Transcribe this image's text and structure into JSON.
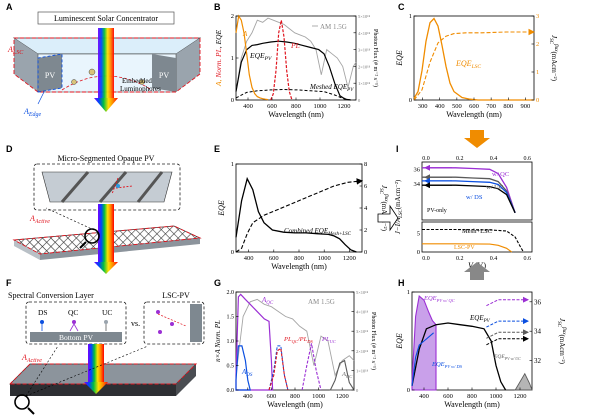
{
  "panels": {
    "A": {
      "letter": "A",
      "title": "Luminescent Solar Concentrator",
      "pv_left": "PV",
      "pv_right": "PV",
      "a_lsc": "A",
      "a_lsc_sub": "LSC",
      "a_edge": "A",
      "a_edge_sub": "Edge",
      "lum_line1": "Embedded",
      "lum_line2": "Luminophores"
    },
    "B": {
      "letter": "B",
      "yleft": "Norm. PL, EQE",
      "yright": "Photon Flux (# m⁻² s⁻¹)",
      "xlabel": "Wavelength (nm)",
      "am": "AM 1.5G",
      "eqe_pv": "EQE",
      "eqe_pv_sub": "PV",
      "pl": "PL",
      "meshed": "Meshed EQE",
      "meshed_sub": "PV",
      "a_marker": "A"
    },
    "C": {
      "letter": "C",
      "ylabel": "EQE",
      "xlabel": "Wavelength (nm)",
      "curve": "EQE",
      "curve_sub": "LSC",
      "yright": "J",
      "yright_sub": "SC",
      "yright_sup": "flux",
      "yright_unit": "(mAcm⁻²)"
    },
    "D": {
      "letter": "D",
      "title": "Micro-Segmented Opaque PV",
      "a_active": "A",
      "a_active_sub": "Active"
    },
    "E": {
      "letter": "E",
      "ylabel": "EQE",
      "xlabel": "Wavelength (nm)",
      "combined": "Combined EQE",
      "combined_sub": "Mesh+LSC",
      "yright": "J",
      "yright_sub": "SC",
      "yright_sup": "flux",
      "yright_unit": "(mAcm⁻²)"
    },
    "F": {
      "letter": "F",
      "title": "Spectral Conversion Layer",
      "lsc_pv": "LSC-PV",
      "ds": "DS",
      "qc": "QC",
      "uc": "UC",
      "vs": "vs.",
      "bottom_pv": "Bottom PV",
      "a_active": "A",
      "a_active_sub": "Active"
    },
    "G": {
      "letter": "G",
      "ylabel": "n×A Norm. PL",
      "yright": "Photon Flux (# m⁻² s⁻¹)",
      "xlabel": "Wavelength (nm)",
      "am": "AM 1.5G",
      "a_qc": "A",
      "a_qc_sub": "QC",
      "a_ds": "A",
      "a_ds_sub": "DS",
      "pl_qc": "PL",
      "pl_qc_sub": "QC",
      "pl_ds": "PL",
      "pl_ds_sub": "DS",
      "pl_uc": "PL",
      "pl_uc_sub": "UC",
      "a_uc": "A",
      "a_uc_sub": "UC"
    },
    "H": {
      "letter": "H",
      "ylabel": "EQE",
      "xlabel": "Wavelength (nm)",
      "eqe_qc": "EQE",
      "eqe_qc_sub": "PV w/ QC",
      "eqe_pv": "EQE",
      "eqe_pv_sub": "PV",
      "eqe_ds": "EQE",
      "eqe_ds_sub": "PV w/ DS",
      "eqe_uc": "EQE",
      "eqe_uc_sub": "PV w/ UC",
      "yright": "J",
      "yright_sub": "SC",
      "yright_sup": "flux",
      "yright_unit": "(mAcm⁻²)"
    },
    "I": {
      "letter": "I",
      "ylabel": "J−I/A",
      "ylabel_sub": "LSC",
      "ylabel_unit": "(mAcm⁻²)",
      "xlabel": "V",
      "xlabel_unit": "(V)",
      "wqc": "w/ QC",
      "wuc": "w/ UC",
      "wds": "w/ DS",
      "pvonly": "PV-only",
      "meshlsc": "Mesh+LSC",
      "lscpv": "LSC-PV"
    }
  },
  "ticks": {
    "b_x": [
      "400",
      "600",
      "800",
      "1000",
      "1200"
    ],
    "b_yl": [
      "0",
      "1",
      "2"
    ],
    "b_yr": [
      "0",
      "1×10¹⁸",
      "2×10¹⁸",
      "3×10¹⁸",
      "4×10¹⁸",
      "5×10¹⁸"
    ],
    "c_x": [
      "300",
      "400",
      "500",
      "600",
      "700",
      "800",
      "900"
    ],
    "c_yl": [
      "0",
      "1"
    ],
    "c_yr": [
      "0",
      "1",
      "2",
      "3"
    ],
    "e_x": [
      "400",
      "600",
      "800",
      "1000",
      "1200"
    ],
    "e_yl": [
      "0",
      "1"
    ],
    "e_yr": [
      "0",
      "2",
      "4",
      "6",
      "8"
    ],
    "g_x": [
      "400",
      "600",
      "800",
      "1000",
      "1200"
    ],
    "g_yl": [
      "0.0",
      "0.5",
      "1.0",
      "1.5",
      "2.0"
    ],
    "g_yr": [
      "0",
      "1×10¹⁸",
      "2×10¹⁸",
      "3×10¹⁸",
      "4×10¹⁸",
      "5×10¹⁸"
    ],
    "h_x": [
      "400",
      "600",
      "800",
      "1000",
      "1200"
    ],
    "h_yl": [
      "0",
      "1"
    ],
    "h_yr": [
      "32",
      "34",
      "36"
    ],
    "i_top_y": [
      "34",
      "36"
    ],
    "i_bot_y": [
      "0",
      "5"
    ],
    "i_x": [
      "0.0",
      "0.2",
      "0.4",
      "0.6"
    ]
  },
  "colors": {
    "orange": "#f08c00",
    "red": "#e0141e",
    "purple": "#9b2fd4",
    "blue": "#0b4fe0",
    "gray": "#a5a5a5",
    "green": "#1fa02a",
    "dkgray": "#5a5a5a",
    "lightblue": "#dbeefa"
  },
  "chart_data": [
    {
      "panel": "B",
      "type": "line",
      "xlim": [
        300,
        1200
      ],
      "ylim": [
        0,
        2.0
      ],
      "series": [
        {
          "name": "EQE_PV",
          "x": [
            300,
            340,
            380,
            420,
            460,
            500,
            560,
            620,
            680,
            740,
            800,
            860,
            920,
            960,
            1000,
            1040,
            1080,
            1120,
            1160
          ],
          "y": [
            0.2,
            0.9,
            1.2,
            1.3,
            1.32,
            1.35,
            1.38,
            1.4,
            1.38,
            1.35,
            1.3,
            1.25,
            1.2,
            1.1,
            0.8,
            0.4,
            0.1,
            0.02,
            0.0
          ]
        },
        {
          "name": "PL",
          "x": [
            560,
            580,
            600,
            620,
            640,
            660,
            680,
            700,
            720
          ],
          "y": [
            0.0,
            0.15,
            0.7,
            1.6,
            1.9,
            1.5,
            0.7,
            0.2,
            0.0
          ]
        },
        {
          "x": [
            300,
            320,
            340,
            360,
            380,
            400,
            420,
            440,
            460,
            480,
            500,
            520,
            540
          ],
          "y": [
            1.6,
            2.0,
            1.9,
            1.6,
            1.1,
            0.6,
            0.3,
            0.15,
            0.08,
            0.05,
            0.03,
            0.02,
            0.01
          ]
        },
        {
          "name": "Meshed EQE_PV",
          "x": [
            300,
            380,
            460,
            560,
            660,
            760,
            860,
            960,
            1040,
            1100,
            1160
          ],
          "y": [
            0.05,
            0.18,
            0.22,
            0.24,
            0.25,
            0.24,
            0.22,
            0.2,
            0.12,
            0.04,
            0.0
          ]
        },
        {
          "name": "AM 1.5G",
          "x": [
            300,
            340,
            380,
            420,
            460,
            500,
            540,
            580,
            620,
            660,
            700,
            740,
            780,
            820,
            860,
            900,
            940,
            980,
            1020,
            1060,
            1100,
            1140,
            1180,
            1200
          ],
          "y": [
            0.2,
            1.0,
            1.4,
            1.6,
            1.9,
            1.85,
            1.95,
            1.9,
            1.85,
            1.8,
            1.7,
            1.6,
            1.55,
            1.5,
            1.4,
            1.2,
            0.6,
            1.2,
            1.1,
            1.0,
            0.8,
            0.3,
            0.8,
            0.9
          ]
        }
      ]
    },
    {
      "panel": "C",
      "type": "line",
      "xlim": [
        300,
        900
      ],
      "ylim": [
        0,
        1
      ],
      "series": [
        {
          "name": "EQE_LSC",
          "x": [
            300,
            320,
            340,
            360,
            380,
            400,
            420,
            440,
            460,
            480,
            500,
            540,
            580,
            620,
            680,
            760,
            900
          ],
          "y": [
            0.02,
            0.1,
            0.35,
            0.7,
            0.92,
            0.97,
            0.88,
            0.65,
            0.4,
            0.2,
            0.1,
            0.03,
            0.01,
            0.0,
            0,
            0,
            0
          ]
        },
        {
          "name": "J_SC flux",
          "x": [
            300,
            340,
            380,
            420,
            460,
            500,
            560,
            640,
            760,
            900
          ],
          "y": [
            0.0,
            0.12,
            0.45,
            0.68,
            0.76,
            0.79,
            0.8,
            0.8,
            0.81,
            0.81
          ]
        }
      ]
    },
    {
      "panel": "E",
      "type": "line",
      "xlim": [
        300,
        1200
      ],
      "ylim": [
        0,
        1.2
      ],
      "series": [
        {
          "name": "Combined EQE_Mesh+LSC",
          "x": [
            300,
            340,
            380,
            420,
            460,
            500,
            560,
            640,
            720,
            800,
            880,
            960,
            1000,
            1040,
            1080,
            1120,
            1160
          ],
          "y": [
            0.2,
            0.7,
            1.0,
            0.85,
            0.55,
            0.4,
            0.3,
            0.27,
            0.26,
            0.26,
            0.25,
            0.24,
            0.22,
            0.18,
            0.1,
            0.03,
            0.0
          ]
        },
        {
          "name": "J_SC flux",
          "x": [
            300,
            340,
            380,
            420,
            500,
            600,
            700,
            800,
            900,
            1000,
            1100,
            1200
          ],
          "y": [
            0.0,
            0.05,
            0.25,
            0.4,
            0.5,
            0.58,
            0.66,
            0.74,
            0.82,
            0.9,
            0.95,
            0.97
          ]
        }
      ]
    },
    {
      "panel": "G",
      "type": "line",
      "xlim": [
        300,
        1300
      ],
      "ylim": [
        0,
        2.0
      ],
      "series": [
        {
          "name": "A_QC",
          "x": [
            300,
            320,
            340,
            360,
            380,
            420,
            480,
            540,
            580,
            600,
            610
          ],
          "y": [
            0.3,
            1.9,
            1.95,
            1.9,
            1.85,
            1.75,
            1.6,
            1.45,
            1.4,
            0.6,
            0.0
          ]
        },
        {
          "name": "A_DS",
          "x": [
            300,
            320,
            350,
            380,
            400,
            420
          ],
          "y": [
            0.2,
            0.9,
            0.9,
            0.6,
            0.2,
            0.0
          ]
        },
        {
          "name": "PL_DS",
          "x": [
            580,
            620,
            650,
            680,
            710,
            740
          ],
          "y": [
            0.0,
            0.4,
            0.9,
            0.9,
            0.3,
            0.0
          ]
        },
        {
          "name": "PL_QC",
          "x": [
            580,
            620,
            650,
            680,
            710,
            740
          ],
          "y": [
            0.0,
            0.3,
            0.8,
            0.85,
            0.3,
            0.0
          ]
        },
        {
          "name": "PL_UC",
          "x": [
            860,
            900,
            940,
            980,
            1020
          ],
          "y": [
            0.0,
            0.5,
            0.95,
            0.4,
            0.0
          ]
        },
        {
          "name": "A_UC",
          "x": [
            1100,
            1140,
            1180,
            1220,
            1260,
            1300
          ],
          "y": [
            0.0,
            0.2,
            0.55,
            0.6,
            0.15,
            0.0
          ]
        },
        {
          "name": "AM 1.5G",
          "x": [
            300,
            360,
            420,
            480,
            540,
            600,
            660,
            720,
            780,
            840,
            900,
            960,
            1020,
            1080,
            1140,
            1200,
            1260,
            1300
          ],
          "y": [
            0.3,
            1.5,
            1.8,
            1.85,
            1.75,
            1.7,
            1.6,
            1.5,
            1.45,
            1.3,
            1.2,
            0.5,
            1.1,
            1.0,
            0.3,
            0.6,
            0.7,
            0.6
          ]
        }
      ]
    },
    {
      "panel": "H",
      "type": "line",
      "xlim": [
        300,
        1300
      ],
      "ylim": [
        0,
        1.2
      ],
      "series": [
        {
          "name": "EQE_PV w/ QC",
          "x": [
            300,
            330,
            360,
            400,
            440,
            470,
            500
          ],
          "y": [
            0.1,
            0.9,
            1.15,
            1.1,
            0.95,
            0.85,
            0.8
          ]
        },
        {
          "name": "EQE_PV",
          "x": [
            300,
            360,
            420,
            500,
            600,
            700,
            800,
            900,
            960,
            1000,
            1040,
            1080
          ],
          "y": [
            0.05,
            0.5,
            0.75,
            0.8,
            0.82,
            0.8,
            0.78,
            0.75,
            0.6,
            0.3,
            0.1,
            0.0
          ]
        },
        {
          "name": "EQE_PV w/ DS",
          "x": [
            300,
            330,
            360,
            400,
            440,
            480
          ],
          "y": [
            0.05,
            0.4,
            0.55,
            0.6,
            0.65,
            0.7
          ]
        },
        {
          "name": "EQE_PV w/ UC",
          "x": [
            1160,
            1200,
            1240,
            1280,
            1300
          ],
          "y": [
            0.0,
            0.1,
            0.2,
            0.08,
            0.0
          ]
        }
      ]
    },
    {
      "panel": "I",
      "type": "line",
      "series": [
        {
          "name": "w/ QC",
          "x": [
            0.0,
            0.1,
            0.2,
            0.3,
            0.4,
            0.45,
            0.5,
            0.55
          ],
          "y": [
            36.2,
            36.2,
            36.2,
            36.1,
            36.0,
            35.4,
            33.5,
            30.0
          ]
        },
        {
          "name": "w/ UC",
          "x": [
            0.0,
            0.1,
            0.2,
            0.3,
            0.4,
            0.45,
            0.5,
            0.55
          ],
          "y": [
            34.9,
            34.9,
            34.9,
            34.8,
            34.7,
            34.3,
            33.0,
            30.0
          ]
        },
        {
          "name": "w/ DS",
          "x": [
            0.0,
            0.1,
            0.2,
            0.3,
            0.4,
            0.45,
            0.5,
            0.55
          ],
          "y": [
            34.4,
            34.4,
            34.4,
            34.3,
            34.2,
            33.9,
            32.8,
            30.0
          ]
        },
        {
          "name": "PV-only",
          "x": [
            0.0,
            0.1,
            0.2,
            0.3,
            0.4,
            0.45,
            0.5,
            0.55
          ],
          "y": [
            33.8,
            33.8,
            33.8,
            33.7,
            33.6,
            33.3,
            32.5,
            30.0
          ]
        },
        {
          "name": "Mesh+LSC",
          "x": [
            0.0,
            0.2,
            0.4,
            0.5,
            0.55,
            0.58,
            0.6
          ],
          "y": [
            6.0,
            6.0,
            5.9,
            5.6,
            4.0,
            1.5,
            0.0
          ]
        },
        {
          "name": "LSC-PV",
          "x": [
            0.0,
            0.2,
            0.4,
            0.45,
            0.5,
            0.53
          ],
          "y": [
            2.2,
            2.2,
            2.1,
            1.8,
            1.0,
            0.0
          ]
        }
      ]
    }
  ]
}
